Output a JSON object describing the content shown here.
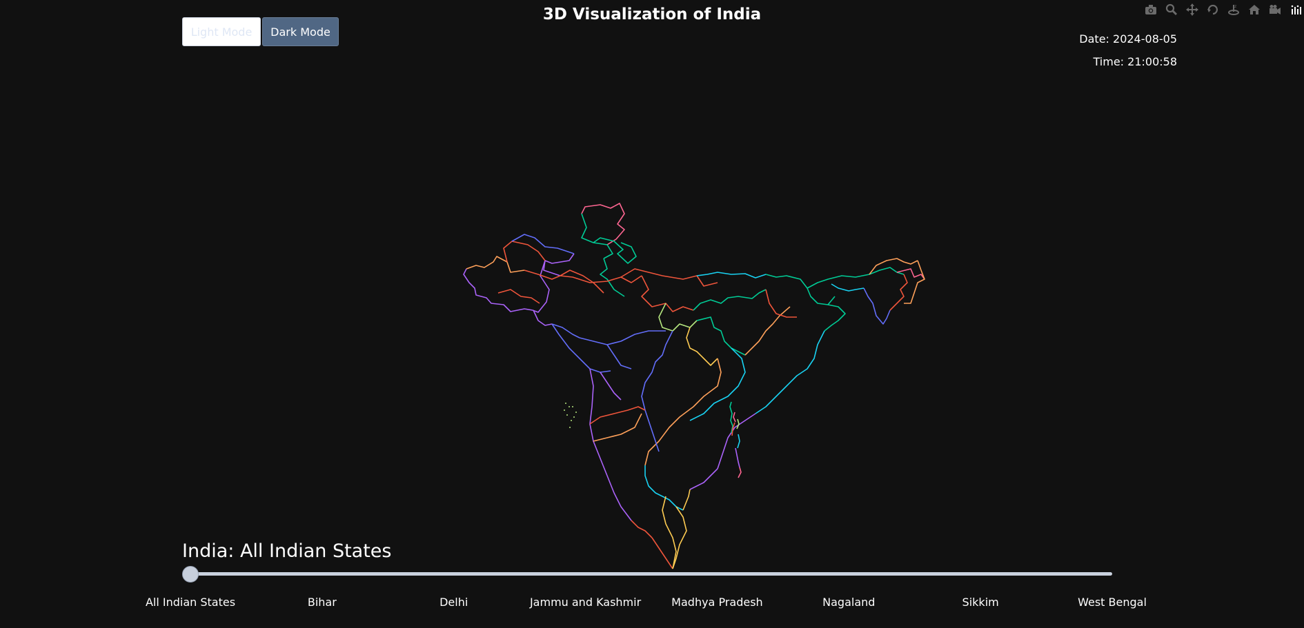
{
  "header": {
    "title": "3D Visualization of India",
    "light_mode_label": "Light Mode",
    "dark_mode_label": "Dark Mode",
    "date_text": "Date: 2024-08-05",
    "time_text": "Time: 21:00:58"
  },
  "modebar": {
    "icons": [
      "camera-icon",
      "zoom-icon",
      "pan-icon",
      "orbit-rotation-icon",
      "turntable-rotation-icon",
      "home-icon",
      "video-camera-icon",
      "plotly-logo-icon"
    ]
  },
  "map": {
    "border_colors": [
      "#EF553B",
      "#00CC96",
      "#AB63FA",
      "#FFA15A",
      "#19D3F3",
      "#FF6692",
      "#B6E880",
      "#FF97FF",
      "#FECB52",
      "#636EFA"
    ]
  },
  "slider": {
    "current_label": "India: All Indian States",
    "selected_index": 0,
    "steps": [
      "All Indian States",
      "Bihar",
      "Delhi",
      "Jammu and Kashmir",
      "Madhya Pradesh",
      "Nagaland",
      "Sikkim",
      "West Bengal"
    ]
  },
  "colors": {
    "background": "#111111",
    "dark_button": "#506784",
    "slider_rail": "#c9d1de"
  }
}
